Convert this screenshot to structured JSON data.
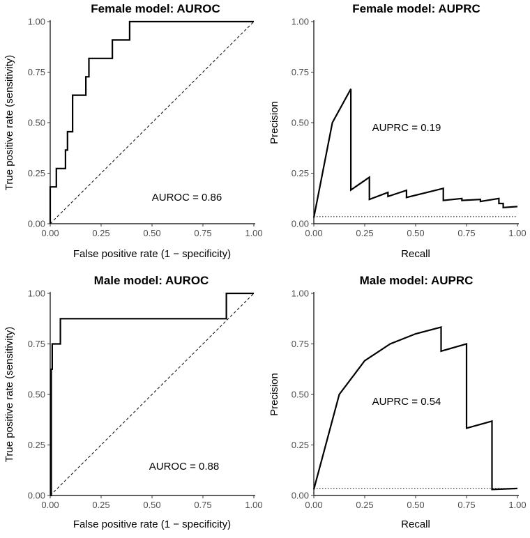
{
  "chart_data": [
    {
      "type": "line",
      "title": "Female model: AUROC",
      "xlabel": "False positive rate (1 − specificity)",
      "ylabel": "True positive rate (sensitivity)",
      "xlim": [
        0,
        1
      ],
      "ylim": [
        0,
        1
      ],
      "ticks": [
        "0.00",
        "0.25",
        "0.50",
        "0.75",
        "1.00"
      ],
      "annotation": "AUROC = 0.86",
      "reference": {
        "style": "dashed",
        "points": [
          [
            0,
            0
          ],
          [
            1,
            1
          ]
        ]
      },
      "series": [
        {
          "points": [
            [
              0,
              0
            ],
            [
              0,
              0.182
            ],
            [
              0.03,
              0.182
            ],
            [
              0.03,
              0.273
            ],
            [
              0.075,
              0.273
            ],
            [
              0.075,
              0.364
            ],
            [
              0.085,
              0.364
            ],
            [
              0.085,
              0.455
            ],
            [
              0.11,
              0.455
            ],
            [
              0.11,
              0.636
            ],
            [
              0.175,
              0.636
            ],
            [
              0.175,
              0.727
            ],
            [
              0.19,
              0.727
            ],
            [
              0.19,
              0.818
            ],
            [
              0.305,
              0.818
            ],
            [
              0.305,
              0.909
            ],
            [
              0.39,
              0.909
            ],
            [
              0.39,
              1.0
            ],
            [
              1.0,
              1.0
            ]
          ]
        }
      ]
    },
    {
      "type": "line",
      "title": "Female model: AUPRC",
      "xlabel": "Recall",
      "ylabel": "Precision",
      "xlim": [
        0,
        1
      ],
      "ylim": [
        0,
        1
      ],
      "ticks": [
        "0.00",
        "0.25",
        "0.50",
        "0.75",
        "1.00"
      ],
      "annotation": "AUPRC = 0.19",
      "reference": {
        "style": "dotted",
        "points": [
          [
            0,
            0.035
          ],
          [
            1,
            0.035
          ]
        ]
      },
      "series": [
        {
          "points": [
            [
              0,
              0.03
            ],
            [
              0.091,
              0.5
            ],
            [
              0.182,
              0.667
            ],
            [
              0.182,
              0.167
            ],
            [
              0.273,
              0.23
            ],
            [
              0.273,
              0.12
            ],
            [
              0.364,
              0.155
            ],
            [
              0.364,
              0.135
            ],
            [
              0.455,
              0.165
            ],
            [
              0.455,
              0.13
            ],
            [
              0.636,
              0.175
            ],
            [
              0.636,
              0.115
            ],
            [
              0.727,
              0.125
            ],
            [
              0.727,
              0.115
            ],
            [
              0.818,
              0.12
            ],
            [
              0.818,
              0.11
            ],
            [
              0.909,
              0.125
            ],
            [
              0.909,
              0.1
            ],
            [
              0.93,
              0.1
            ],
            [
              0.93,
              0.08
            ],
            [
              1.0,
              0.085
            ]
          ]
        }
      ]
    },
    {
      "type": "line",
      "title": "Male model: AUROC",
      "xlabel": "False positive rate (1 − specificity)",
      "ylabel": "True positive rate (sensitivity)",
      "xlim": [
        0,
        1
      ],
      "ylim": [
        0,
        1
      ],
      "ticks": [
        "0.00",
        "0.25",
        "0.50",
        "0.75",
        "1.00"
      ],
      "annotation": "AUROC = 0.88",
      "reference": {
        "style": "dashed",
        "points": [
          [
            0,
            0
          ],
          [
            1,
            1
          ]
        ]
      },
      "series": [
        {
          "points": [
            [
              0,
              0
            ],
            [
              0.005,
              0
            ],
            [
              0.005,
              0.625
            ],
            [
              0.01,
              0.625
            ],
            [
              0.01,
              0.75
            ],
            [
              0.05,
              0.75
            ],
            [
              0.05,
              0.875
            ],
            [
              0.865,
              0.875
            ],
            [
              0.865,
              1.0
            ],
            [
              1.0,
              1.0
            ]
          ]
        }
      ]
    },
    {
      "type": "line",
      "title": "Male model: AUPRC",
      "xlabel": "Recall",
      "ylabel": "Precision",
      "xlim": [
        0,
        1
      ],
      "ylim": [
        0,
        1
      ],
      "ticks": [
        "0.00",
        "0.25",
        "0.50",
        "0.75",
        "1.00"
      ],
      "annotation": "AUPRC = 0.54",
      "reference": {
        "style": "dotted",
        "points": [
          [
            0,
            0.035
          ],
          [
            1,
            0.035
          ]
        ]
      },
      "series": [
        {
          "points": [
            [
              0,
              0.03
            ],
            [
              0.125,
              0.5
            ],
            [
              0.25,
              0.667
            ],
            [
              0.375,
              0.75
            ],
            [
              0.5,
              0.8
            ],
            [
              0.625,
              0.833
            ],
            [
              0.625,
              0.714
            ],
            [
              0.75,
              0.75
            ],
            [
              0.75,
              0.333
            ],
            [
              0.875,
              0.368
            ],
            [
              0.875,
              0.03
            ],
            [
              1.0,
              0.035
            ]
          ]
        }
      ]
    }
  ]
}
